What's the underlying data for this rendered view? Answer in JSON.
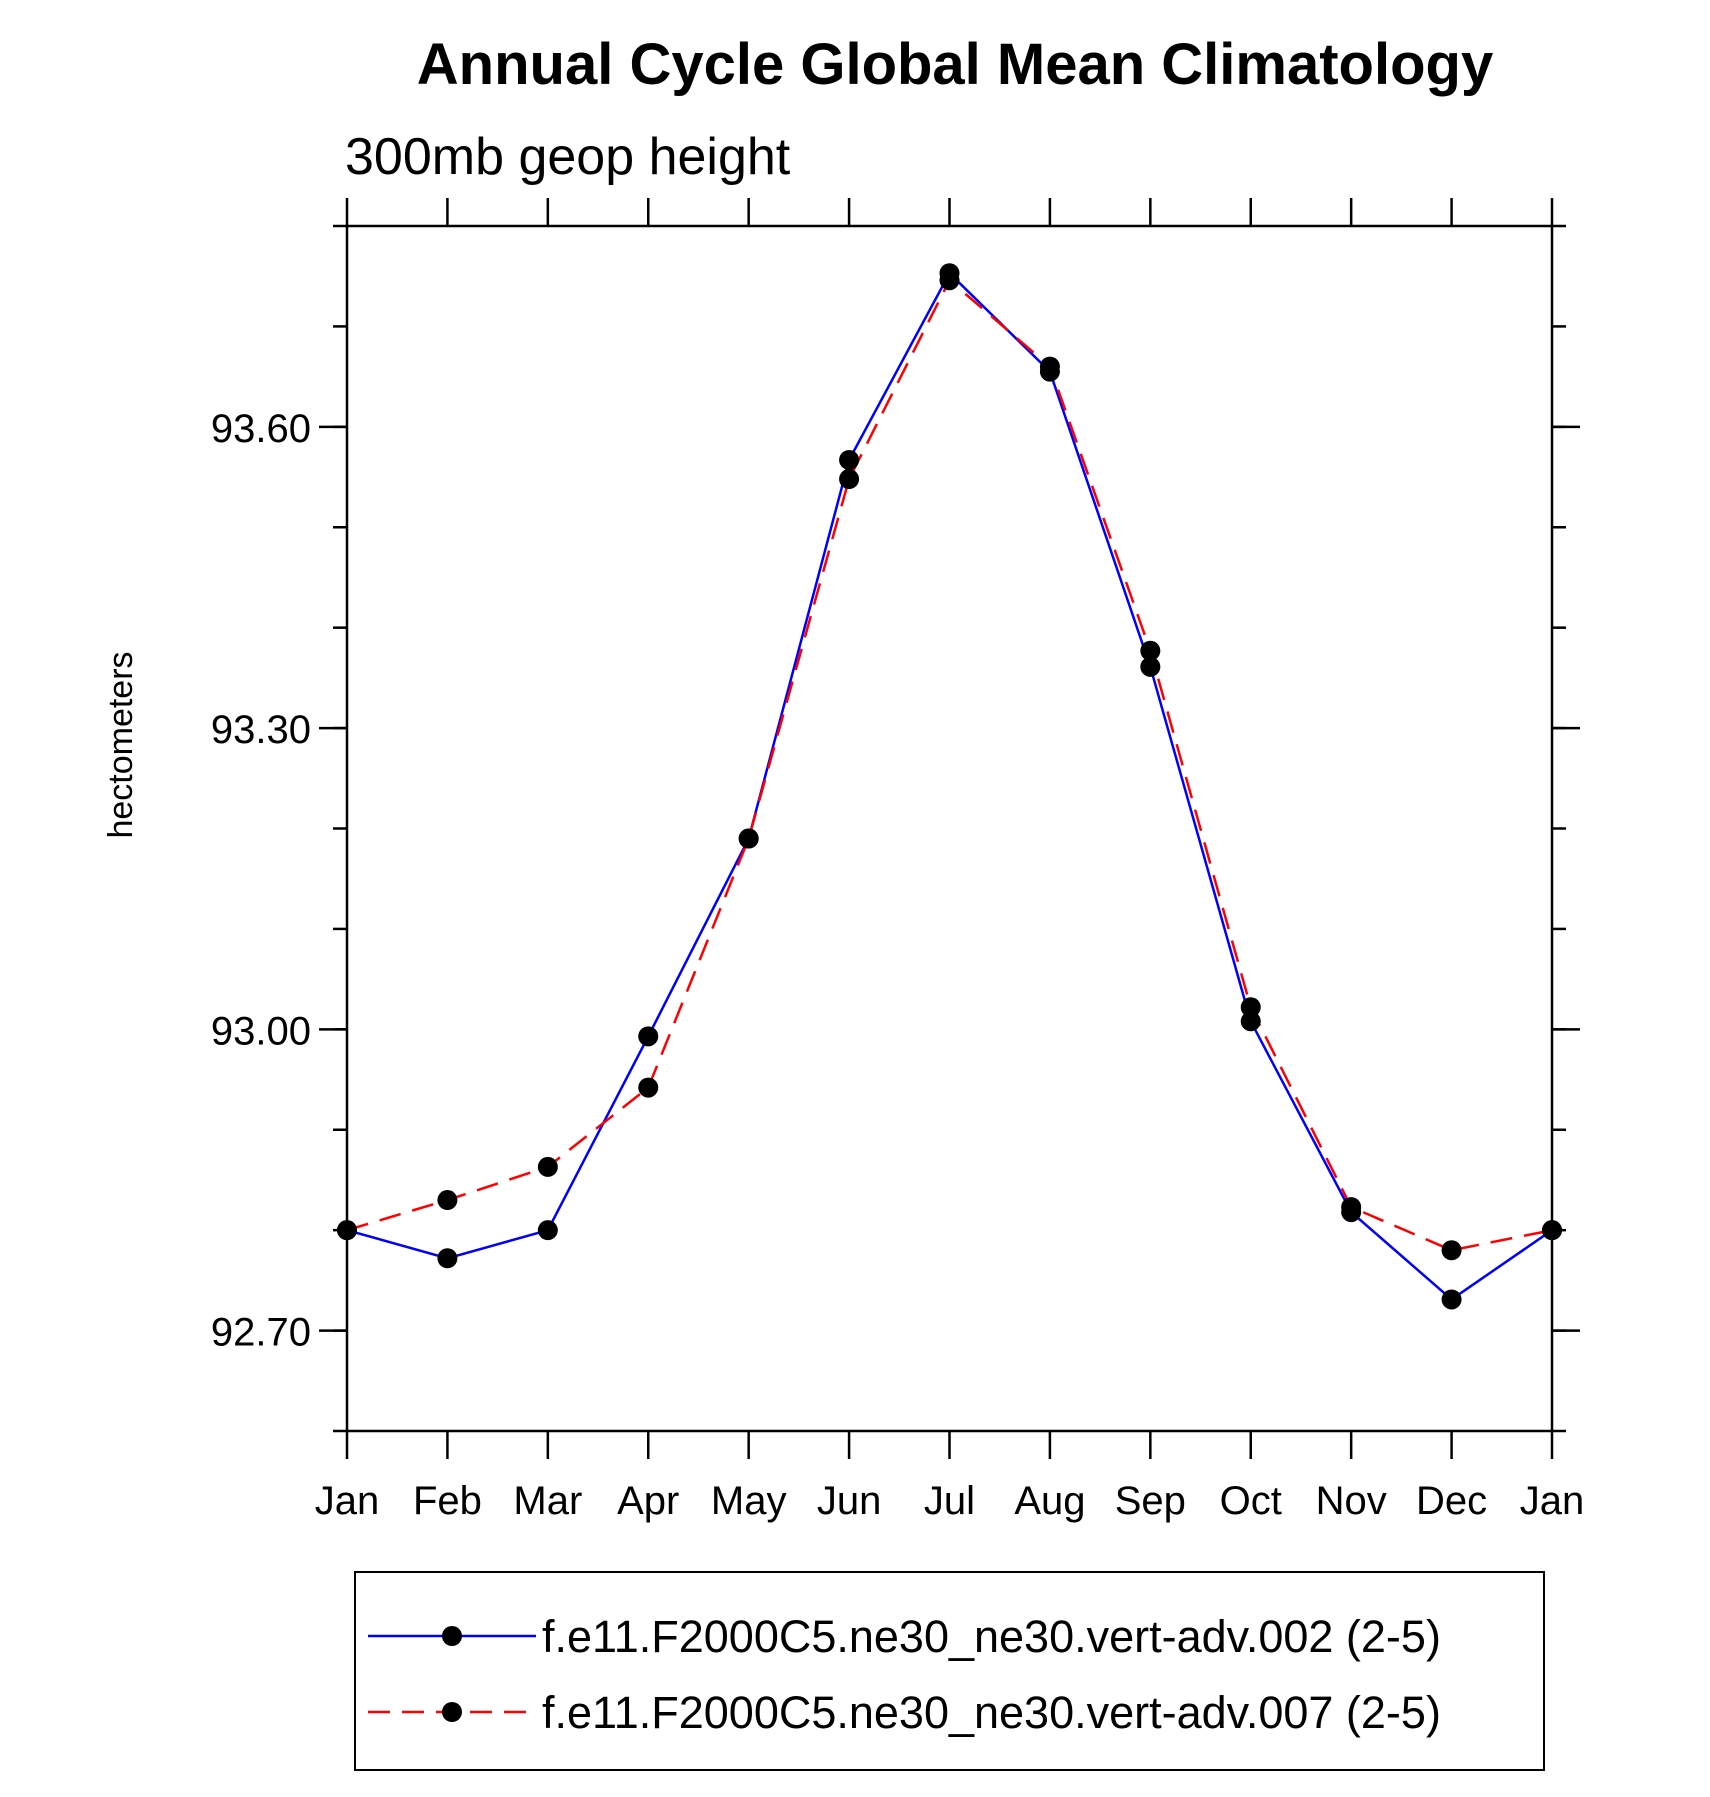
{
  "chart_data": {
    "type": "line",
    "title": "Annual Cycle Global Mean Climatology",
    "subtitle": "300mb geop height",
    "xlabel": "",
    "ylabel": "hectometers",
    "categories": [
      "Jan",
      "Feb",
      "Mar",
      "Apr",
      "May",
      "Jun",
      "Jul",
      "Aug",
      "Sep",
      "Oct",
      "Nov",
      "Dec",
      "Jan"
    ],
    "ylim": [
      92.6,
      93.8
    ],
    "y_major_ticks": [
      "92.70",
      "93.00",
      "93.30",
      "93.60"
    ],
    "grid": false,
    "legend_position": "bottom",
    "series": [
      {
        "name": "f.e11.F2000C5.ne30_ne30.vert-adv.002 (2-5)",
        "color": "#0000ff",
        "dash": "solid",
        "marker": "filled-circle",
        "values": [
          92.8,
          92.772,
          92.8,
          92.993,
          93.19,
          93.567,
          93.753,
          93.655,
          93.361,
          93.008,
          92.818,
          92.731,
          92.8
        ]
      },
      {
        "name": "f.e11.F2000C5.ne30_ne30.vert-adv.007 (2-5)",
        "color": "#ff0000",
        "dash": "dashed",
        "marker": "filled-circle",
        "values": [
          92.8,
          92.83,
          92.863,
          92.942,
          93.19,
          93.548,
          93.746,
          93.66,
          93.377,
          93.022,
          92.823,
          92.78,
          92.8
        ]
      }
    ]
  }
}
